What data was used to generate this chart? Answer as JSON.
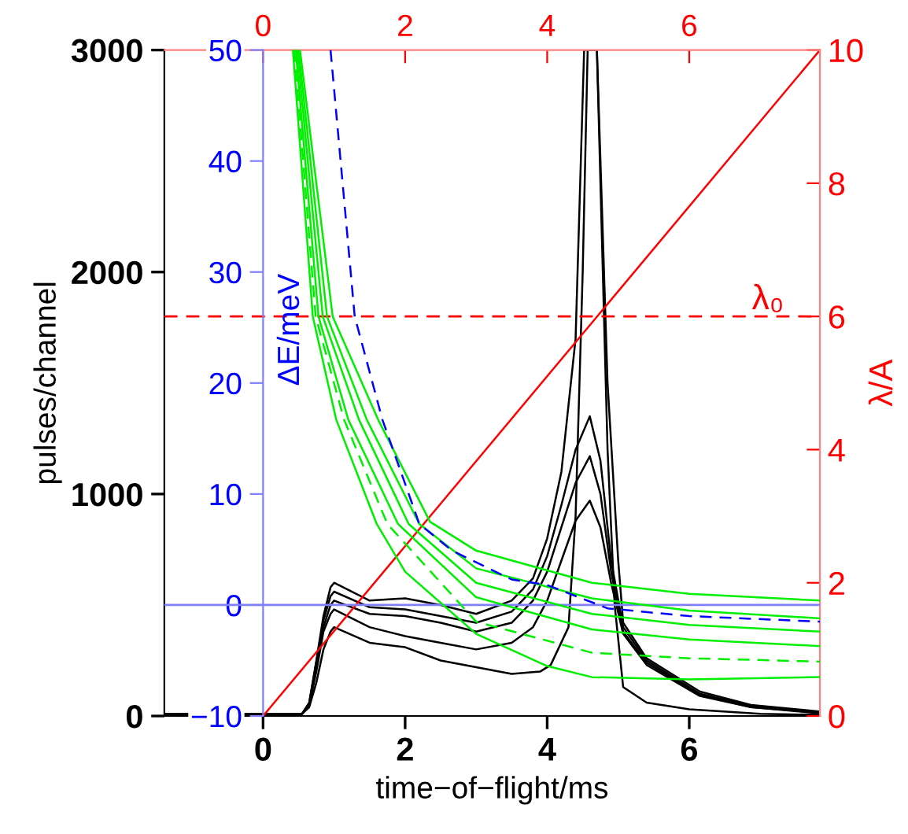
{
  "chart_data": {
    "type": "line",
    "xlabel": "time−of−flight/ms",
    "ylabel": "pulses/channel",
    "y2label": "λ/A",
    "y3label": "ΔE/meV",
    "xlim": [
      -1.39,
      7.84
    ],
    "xticks": [
      0,
      2,
      4,
      6
    ],
    "x2lim": [
      -1.39,
      7.84
    ],
    "x2ticks": [
      0,
      2,
      4,
      6
    ],
    "ylim": [
      0,
      3000
    ],
    "yticks": [
      0,
      1000,
      2000,
      3000
    ],
    "y2lim": [
      0,
      10
    ],
    "y2ticks": [
      0,
      2,
      4,
      6,
      8,
      10
    ],
    "y3lim": [
      -10,
      50
    ],
    "y3ticks": [
      {
        "value": -10,
        "label": "−10"
      },
      0,
      10,
      20,
      30,
      40,
      50
    ],
    "ref_lines": [
      {
        "axis": "y2",
        "value": 6,
        "label": "λ₀",
        "color": "#ff0000",
        "line_style": "dashed"
      },
      {
        "axis": "y3",
        "value": 0,
        "color": "#7f7fff",
        "line_style": "solid"
      }
    ],
    "series": [
      {
        "axis": "y",
        "color": "#000000",
        "line_style": "solid",
        "x": [
          -1.39,
          0,
          0.55,
          0.65,
          0.75,
          0.85,
          0.95,
          1.0,
          1.5,
          2.0,
          2.5,
          3.0,
          3.5,
          3.8,
          4.0,
          4.2,
          4.4,
          4.52,
          4.7,
          4.85,
          5.0,
          5.07,
          5.4,
          6.15,
          6.87,
          7.84
        ],
        "values": [
          10,
          8,
          10,
          60,
          250,
          450,
          580,
          600,
          520,
          530,
          500,
          460,
          520,
          620,
          800,
          1100,
          1700,
          3000,
          3000,
          1500,
          700,
          420,
          260,
          110,
          50,
          20
        ]
      },
      {
        "axis": "y",
        "color": "#000000",
        "line_style": "solid",
        "x": [
          -1.39,
          0,
          0.55,
          0.65,
          0.75,
          0.85,
          0.95,
          1.0,
          1.5,
          2.0,
          2.5,
          3.0,
          3.5,
          3.8,
          4.0,
          4.2,
          4.4,
          4.6,
          4.75,
          4.9,
          5.07,
          5.4,
          6.15,
          6.87,
          7.84
        ],
        "values": [
          10,
          8,
          10,
          60,
          240,
          430,
          540,
          560,
          490,
          480,
          450,
          420,
          470,
          570,
          720,
          950,
          1200,
          1350,
          1150,
          700,
          400,
          250,
          100,
          45,
          15
        ]
      },
      {
        "axis": "y",
        "color": "#000000",
        "line_style": "solid",
        "x": [
          -1.39,
          0,
          0.55,
          0.65,
          0.75,
          0.85,
          0.95,
          1.0,
          1.5,
          2.0,
          2.5,
          3.0,
          3.5,
          3.8,
          4.0,
          4.2,
          4.4,
          4.6,
          4.75,
          4.9,
          5.07,
          5.4,
          6.15,
          6.87,
          7.84
        ],
        "values": [
          10,
          8,
          10,
          50,
          220,
          400,
          500,
          520,
          460,
          450,
          420,
          380,
          420,
          520,
          650,
          850,
          1050,
          1170,
          1000,
          650,
          380,
          240,
          95,
          40,
          15
        ]
      },
      {
        "axis": "y",
        "color": "#000000",
        "line_style": "solid",
        "x": [
          -1.39,
          0,
          0.55,
          0.65,
          0.75,
          0.85,
          0.95,
          1.0,
          1.5,
          2.0,
          2.5,
          3.0,
          3.5,
          3.8,
          4.0,
          4.2,
          4.4,
          4.6,
          4.75,
          4.9,
          5.07,
          5.4,
          6.15,
          6.87,
          7.84
        ],
        "values": [
          10,
          8,
          10,
          50,
          200,
          380,
          460,
          480,
          400,
          360,
          330,
          300,
          330,
          400,
          520,
          700,
          880,
          970,
          850,
          600,
          370,
          230,
          90,
          40,
          12
        ]
      },
      {
        "axis": "y",
        "color": "#000000",
        "line_style": "solid",
        "x": [
          -1.39,
          0,
          0.55,
          0.65,
          0.75,
          0.85,
          0.95,
          1.0,
          1.5,
          2.0,
          2.5,
          3.0,
          3.5,
          3.9,
          4.05,
          4.3,
          4.4,
          4.5,
          4.57,
          4.7,
          4.85,
          4.95,
          5.07,
          5.4,
          6.0,
          7.0,
          7.84
        ],
        "values": [
          10,
          8,
          10,
          40,
          150,
          300,
          380,
          400,
          330,
          310,
          250,
          220,
          190,
          200,
          230,
          400,
          900,
          2000,
          3000,
          3000,
          1200,
          500,
          130,
          60,
          30,
          10,
          5
        ]
      },
      {
        "axis": "y2",
        "color": "#ff0000",
        "line_style": "solid",
        "x": [
          0,
          7.84
        ],
        "values": [
          0,
          10
        ]
      },
      {
        "axis": "y3",
        "color": "#00ee00",
        "line_style": "solid",
        "x": [
          0.52,
          0.98,
          1.62,
          2.35,
          3.0,
          4.63,
          6.0,
          7.84
        ],
        "values": [
          50,
          26,
          16.7,
          7.5,
          4.9,
          2.0,
          1.0,
          0.4
        ]
      },
      {
        "axis": "y3",
        "color": "#00ee00",
        "line_style": "solid",
        "x": [
          0.5,
          0.9,
          1.46,
          2.2,
          3.0,
          4.63,
          6.0,
          7.84
        ],
        "values": [
          50,
          26,
          16.7,
          7.3,
          3.3,
          0.6,
          -0.5,
          -1.2
        ]
      },
      {
        "axis": "y3",
        "color": "#00ee00",
        "line_style": "solid",
        "x": [
          0.48,
          0.84,
          1.35,
          2.05,
          3.0,
          4.63,
          6.0,
          7.84
        ],
        "values": [
          50,
          26,
          16.7,
          7.3,
          2.0,
          -0.8,
          -1.8,
          -2.4
        ]
      },
      {
        "axis": "y3",
        "color": "#00ee00",
        "line_style": "solid",
        "x": [
          0.46,
          0.78,
          1.2,
          1.9,
          3.0,
          4.63,
          6.0,
          7.84
        ],
        "values": [
          50,
          26,
          16.7,
          7.3,
          0.7,
          -2.2,
          -3.1,
          -3.7
        ]
      },
      {
        "axis": "y3",
        "color": "#00ee00",
        "line_style": "dashed",
        "x": [
          0.44,
          0.74,
          1.14,
          1.75,
          3.0,
          4.63,
          6.0,
          7.84
        ],
        "values": [
          50,
          26,
          16.7,
          7.3,
          -1.5,
          -4.3,
          -4.8,
          -5.1
        ]
      },
      {
        "axis": "y3",
        "color": "#00ee00",
        "line_style": "solid",
        "x": [
          0.42,
          0.7,
          1.03,
          1.6,
          2.0,
          3.0,
          4.0,
          4.63,
          6.0,
          7.84
        ],
        "values": [
          50,
          26,
          16.7,
          7.3,
          3.0,
          -2.6,
          -5.5,
          -6.5,
          -6.7,
          -6.5
        ]
      },
      {
        "axis": "y3",
        "color": "#0000ff",
        "line_style": "dashed",
        "x": [
          0.95,
          1.29,
          1.68,
          2.2,
          2.66,
          3.5,
          4.0,
          4.85,
          6.0,
          7.84
        ],
        "values": [
          50,
          26,
          16.7,
          7.3,
          4.9,
          2.3,
          1.8,
          -0.3,
          -1.0,
          -1.5
        ]
      }
    ]
  }
}
